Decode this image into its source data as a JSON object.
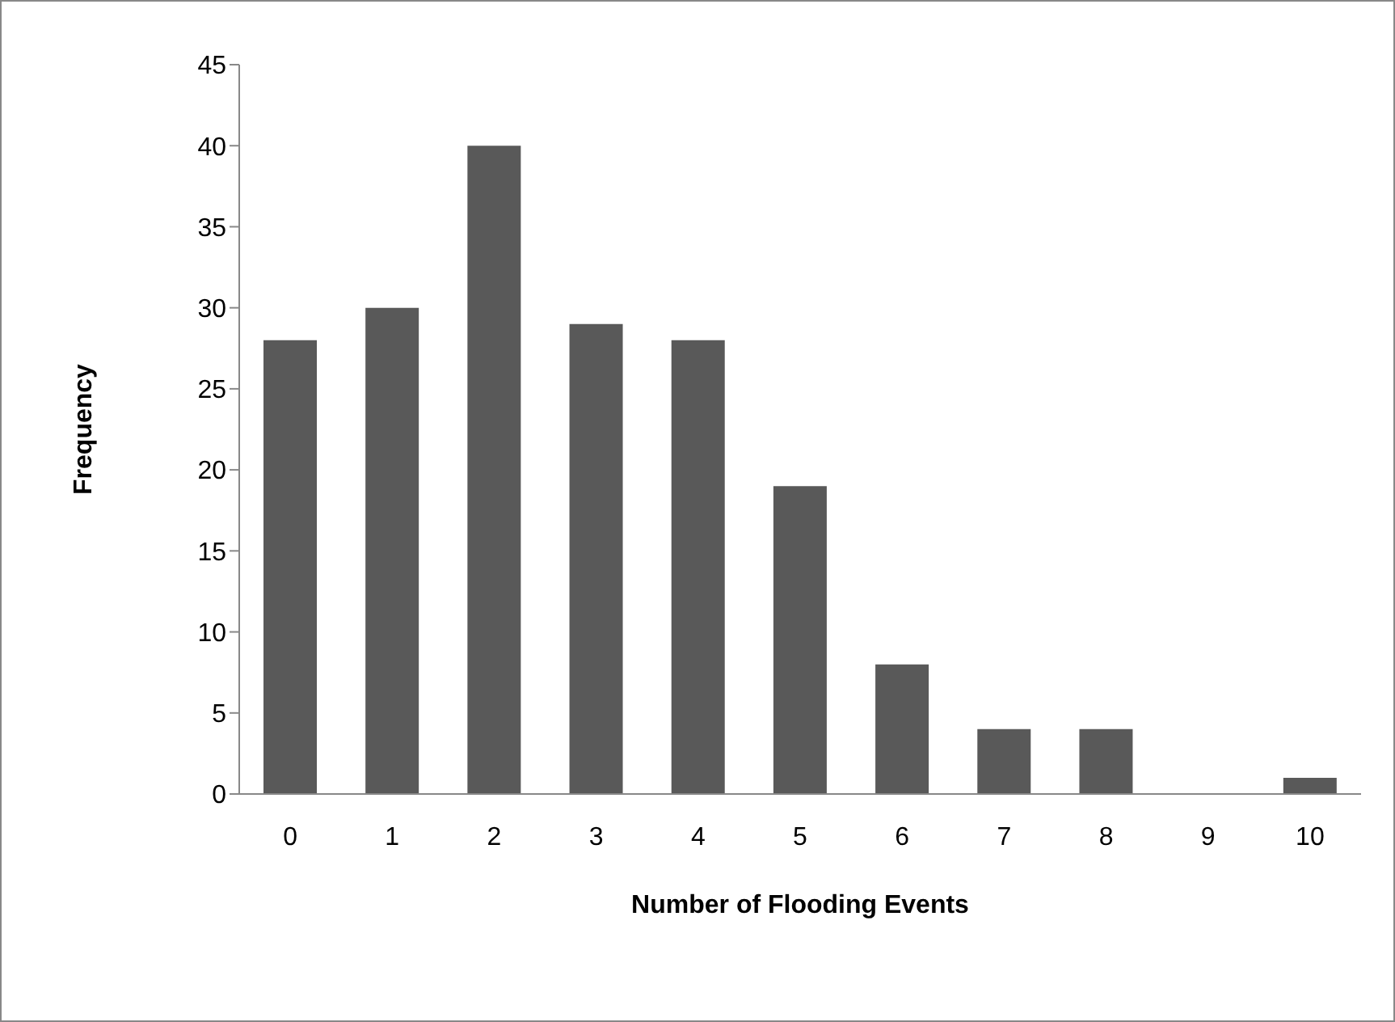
{
  "chart_data": {
    "type": "bar",
    "xlabel": "Number of Flooding Events",
    "ylabel": "Frequency",
    "categories": [
      "0",
      "1",
      "2",
      "3",
      "4",
      "5",
      "6",
      "7",
      "8",
      "9",
      "10"
    ],
    "values": [
      28,
      30,
      40,
      29,
      28,
      19,
      8,
      4,
      4,
      0,
      1
    ],
    "color": "#595959",
    "ylim": [
      0,
      45
    ],
    "yticks": [
      0,
      5,
      10,
      15,
      20,
      25,
      30,
      35,
      40,
      45
    ],
    "grid": false,
    "legend": false
  }
}
